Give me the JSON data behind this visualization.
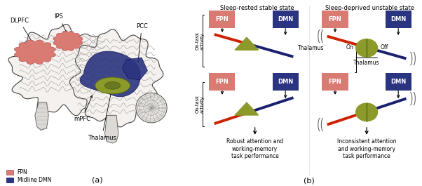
{
  "brain_panel_label": "(a)",
  "diagram_panel_label": "(b)",
  "fpn_color": "#D97B72",
  "dmn_color": "#2B3480",
  "thalamus_color": "#8B9A2A",
  "red_line_color": "#CC2200",
  "blue_line_color": "#1A2070",
  "fpn_label": "FPN",
  "dmn_label": "DMN",
  "title_left": "Sleep-rested stable state",
  "title_right": "Sleep-deprived unstable state",
  "result_left": "Robust attention and\nworking-memory\ntask performance",
  "result_right": "Inconsistent attention\nand working-memory\ntask performance",
  "legend_fpn": "FPN",
  "legend_dmn": "Midline DMN",
  "background_color": "#FFFFFF"
}
